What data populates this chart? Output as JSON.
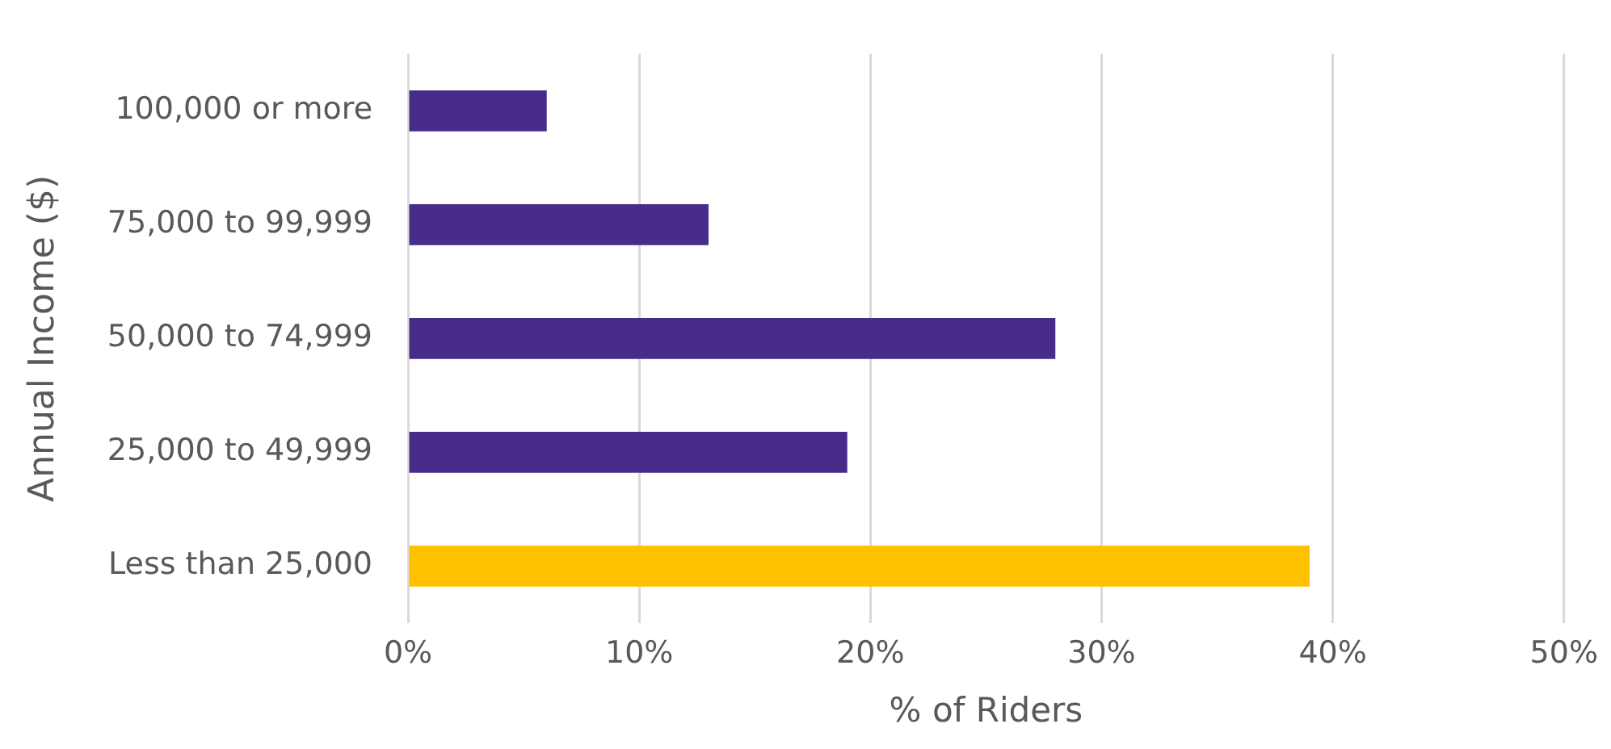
{
  "chart_data": {
    "type": "bar",
    "orientation": "horizontal",
    "xlabel": "% of Riders",
    "ylabel": "Annual Income ($)",
    "categories": [
      "100,000 or more",
      "75,000 to 99,999",
      "50,000 to 74,999",
      "25,000 to 49,999",
      "Less than 25,000"
    ],
    "values": [
      6,
      13,
      28,
      19,
      39
    ],
    "colors": [
      "#472c8a",
      "#472c8a",
      "#472c8a",
      "#472c8a",
      "#ffc000"
    ],
    "xlim": [
      0,
      50
    ],
    "xticks": [
      {
        "value": 0,
        "label": "0%"
      },
      {
        "value": 10,
        "label": "10%"
      },
      {
        "value": 20,
        "label": "20%"
      },
      {
        "value": 30,
        "label": "30%"
      },
      {
        "value": 40,
        "label": "40%"
      },
      {
        "value": 50,
        "label": "50%"
      }
    ],
    "grid": "x",
    "legend": false
  }
}
